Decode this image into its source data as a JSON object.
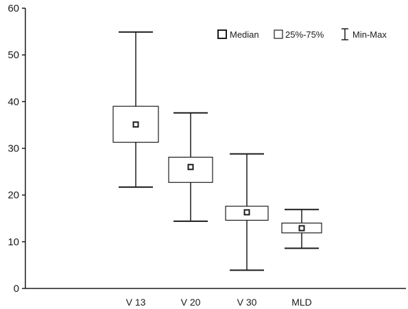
{
  "chart_data": {
    "type": "box",
    "title": "",
    "xlabel": "",
    "ylabel": "",
    "ylim": [
      0,
      60
    ],
    "yticks": [
      0,
      10,
      20,
      30,
      40,
      50,
      60
    ],
    "grid": false,
    "legend_placement": "top-right",
    "legend": [
      {
        "marker": "median-square",
        "label": "Median"
      },
      {
        "marker": "box",
        "label": "25%-75%"
      },
      {
        "marker": "whisker",
        "label": "Min-Max"
      }
    ],
    "categories": [
      "V 13",
      "V 20",
      "V 30",
      "MLD"
    ],
    "boxes": [
      {
        "category": "V 13",
        "min": 21.7,
        "q1": 31.3,
        "median": 35.1,
        "q3": 39.0,
        "max": 54.9
      },
      {
        "category": "V 20",
        "min": 14.4,
        "q1": 22.7,
        "median": 26.0,
        "q3": 28.1,
        "max": 37.6
      },
      {
        "category": "V 30",
        "min": 3.9,
        "q1": 14.6,
        "median": 16.3,
        "q3": 17.6,
        "max": 28.8
      },
      {
        "category": "MLD",
        "min": 8.6,
        "q1": 11.9,
        "median": 12.9,
        "q3": 14.0,
        "max": 16.9
      }
    ]
  }
}
